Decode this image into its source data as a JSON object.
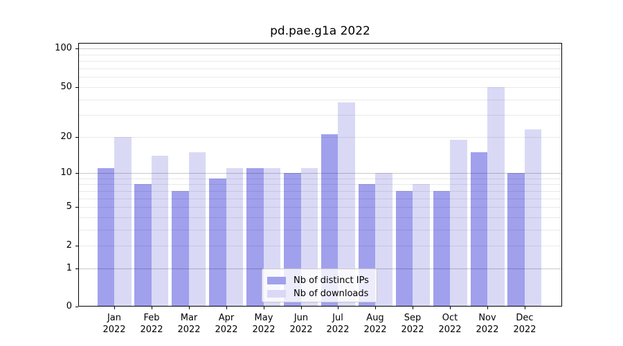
{
  "title": "pd.pae.g1a 2022",
  "chart_data": {
    "type": "bar",
    "title": "pd.pae.g1a 2022",
    "y_scale": "log10(value+1)",
    "grid": true,
    "legend_position": "lower center",
    "ylim": [
      0,
      109
    ],
    "x_ticks": [
      {
        "month": "Jan",
        "year": "2022"
      },
      {
        "month": "Feb",
        "year": "2022"
      },
      {
        "month": "Mar",
        "year": "2022"
      },
      {
        "month": "Apr",
        "year": "2022"
      },
      {
        "month": "May",
        "year": "2022"
      },
      {
        "month": "Jun",
        "year": "2022"
      },
      {
        "month": "Jul",
        "year": "2022"
      },
      {
        "month": "Aug",
        "year": "2022"
      },
      {
        "month": "Sep",
        "year": "2022"
      },
      {
        "month": "Oct",
        "year": "2022"
      },
      {
        "month": "Nov",
        "year": "2022"
      },
      {
        "month": "Dec",
        "year": "2022"
      }
    ],
    "categories": [
      "Jan 2022",
      "Feb 2022",
      "Mar 2022",
      "Apr 2022",
      "May 2022",
      "Jun 2022",
      "Jul 2022",
      "Aug 2022",
      "Sep 2022",
      "Oct 2022",
      "Nov 2022",
      "Dec 2022"
    ],
    "y_tick_labels": [
      "100",
      "50",
      "20",
      "10",
      "5",
      "2",
      "1",
      "0"
    ],
    "y_tick_values": [
      100,
      50,
      20,
      10,
      5,
      2,
      1,
      0
    ],
    "y_major_grid": [
      1,
      10,
      100
    ],
    "y_minor_grid": [
      2,
      3,
      4,
      5,
      6,
      7,
      8,
      9,
      20,
      30,
      40,
      50,
      60,
      70,
      80,
      90
    ],
    "series": [
      {
        "name": "Nb of distinct IPs",
        "color": "#a0a0ed",
        "values": [
          11,
          8,
          7,
          9,
          11,
          10,
          21,
          8,
          7,
          7,
          15,
          10
        ]
      },
      {
        "name": "Nb of downloads",
        "color": "#d9d9f6",
        "values": [
          20,
          14,
          15,
          11,
          11,
          11,
          38,
          10,
          8,
          19,
          50,
          23
        ]
      }
    ]
  },
  "legend": {
    "item1": "Nb of distinct IPs",
    "item2": "Nb of downloads"
  },
  "colors": {
    "series1": "#a0a0ed",
    "series2": "#d9d9f6",
    "grid_minor": "#eaeaea",
    "grid_major": "#c9c9c9",
    "spine": "#000000",
    "background": "#ffffff"
  }
}
